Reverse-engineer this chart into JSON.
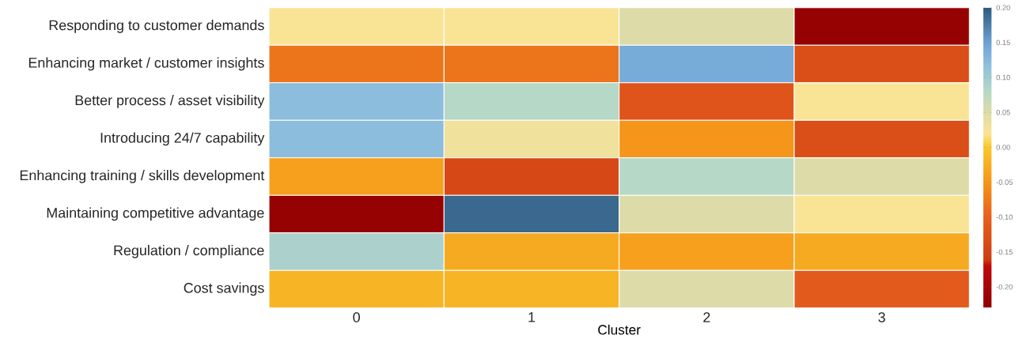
{
  "chart_data": {
    "type": "heatmap",
    "xlabel": "Cluster",
    "categories": [
      "0",
      "1",
      "2",
      "3"
    ],
    "y_categories": [
      "Responding to customer demands",
      "Enhancing market / customer insights",
      "Better process / asset visibility",
      "Introducing 24/7 capability",
      "Enhancing training / skills development",
      "Maintaining competitive advantage",
      "Regulation / compliance",
      "Cost savings"
    ],
    "cells": [
      [
        0.02,
        0.02,
        0.05,
        -0.22
      ],
      [
        -0.08,
        -0.08,
        0.14,
        -0.13
      ],
      [
        0.12,
        0.08,
        -0.12,
        0.02
      ],
      [
        0.12,
        0.03,
        -0.05,
        -0.13
      ],
      [
        -0.04,
        -0.14,
        0.08,
        0.05
      ],
      [
        -0.22,
        0.19,
        0.05,
        0.02
      ],
      [
        0.09,
        -0.03,
        -0.04,
        -0.03
      ],
      [
        -0.02,
        -0.02,
        0.05,
        -0.11
      ]
    ],
    "clim": [
      -0.23,
      0.2
    ],
    "cticks": [
      {
        "value": 0.2,
        "label": "0.20"
      },
      {
        "value": 0.15,
        "label": "0.15"
      },
      {
        "value": 0.1,
        "label": "0.10"
      },
      {
        "value": 0.05,
        "label": "0.05"
      },
      {
        "value": 0.0,
        "label": "0.00"
      },
      {
        "value": -0.05,
        "label": "-0.05"
      },
      {
        "value": -0.1,
        "label": "-0.10"
      },
      {
        "value": -0.15,
        "label": "-0.15"
      },
      {
        "value": -0.2,
        "label": "-0.20"
      }
    ]
  }
}
